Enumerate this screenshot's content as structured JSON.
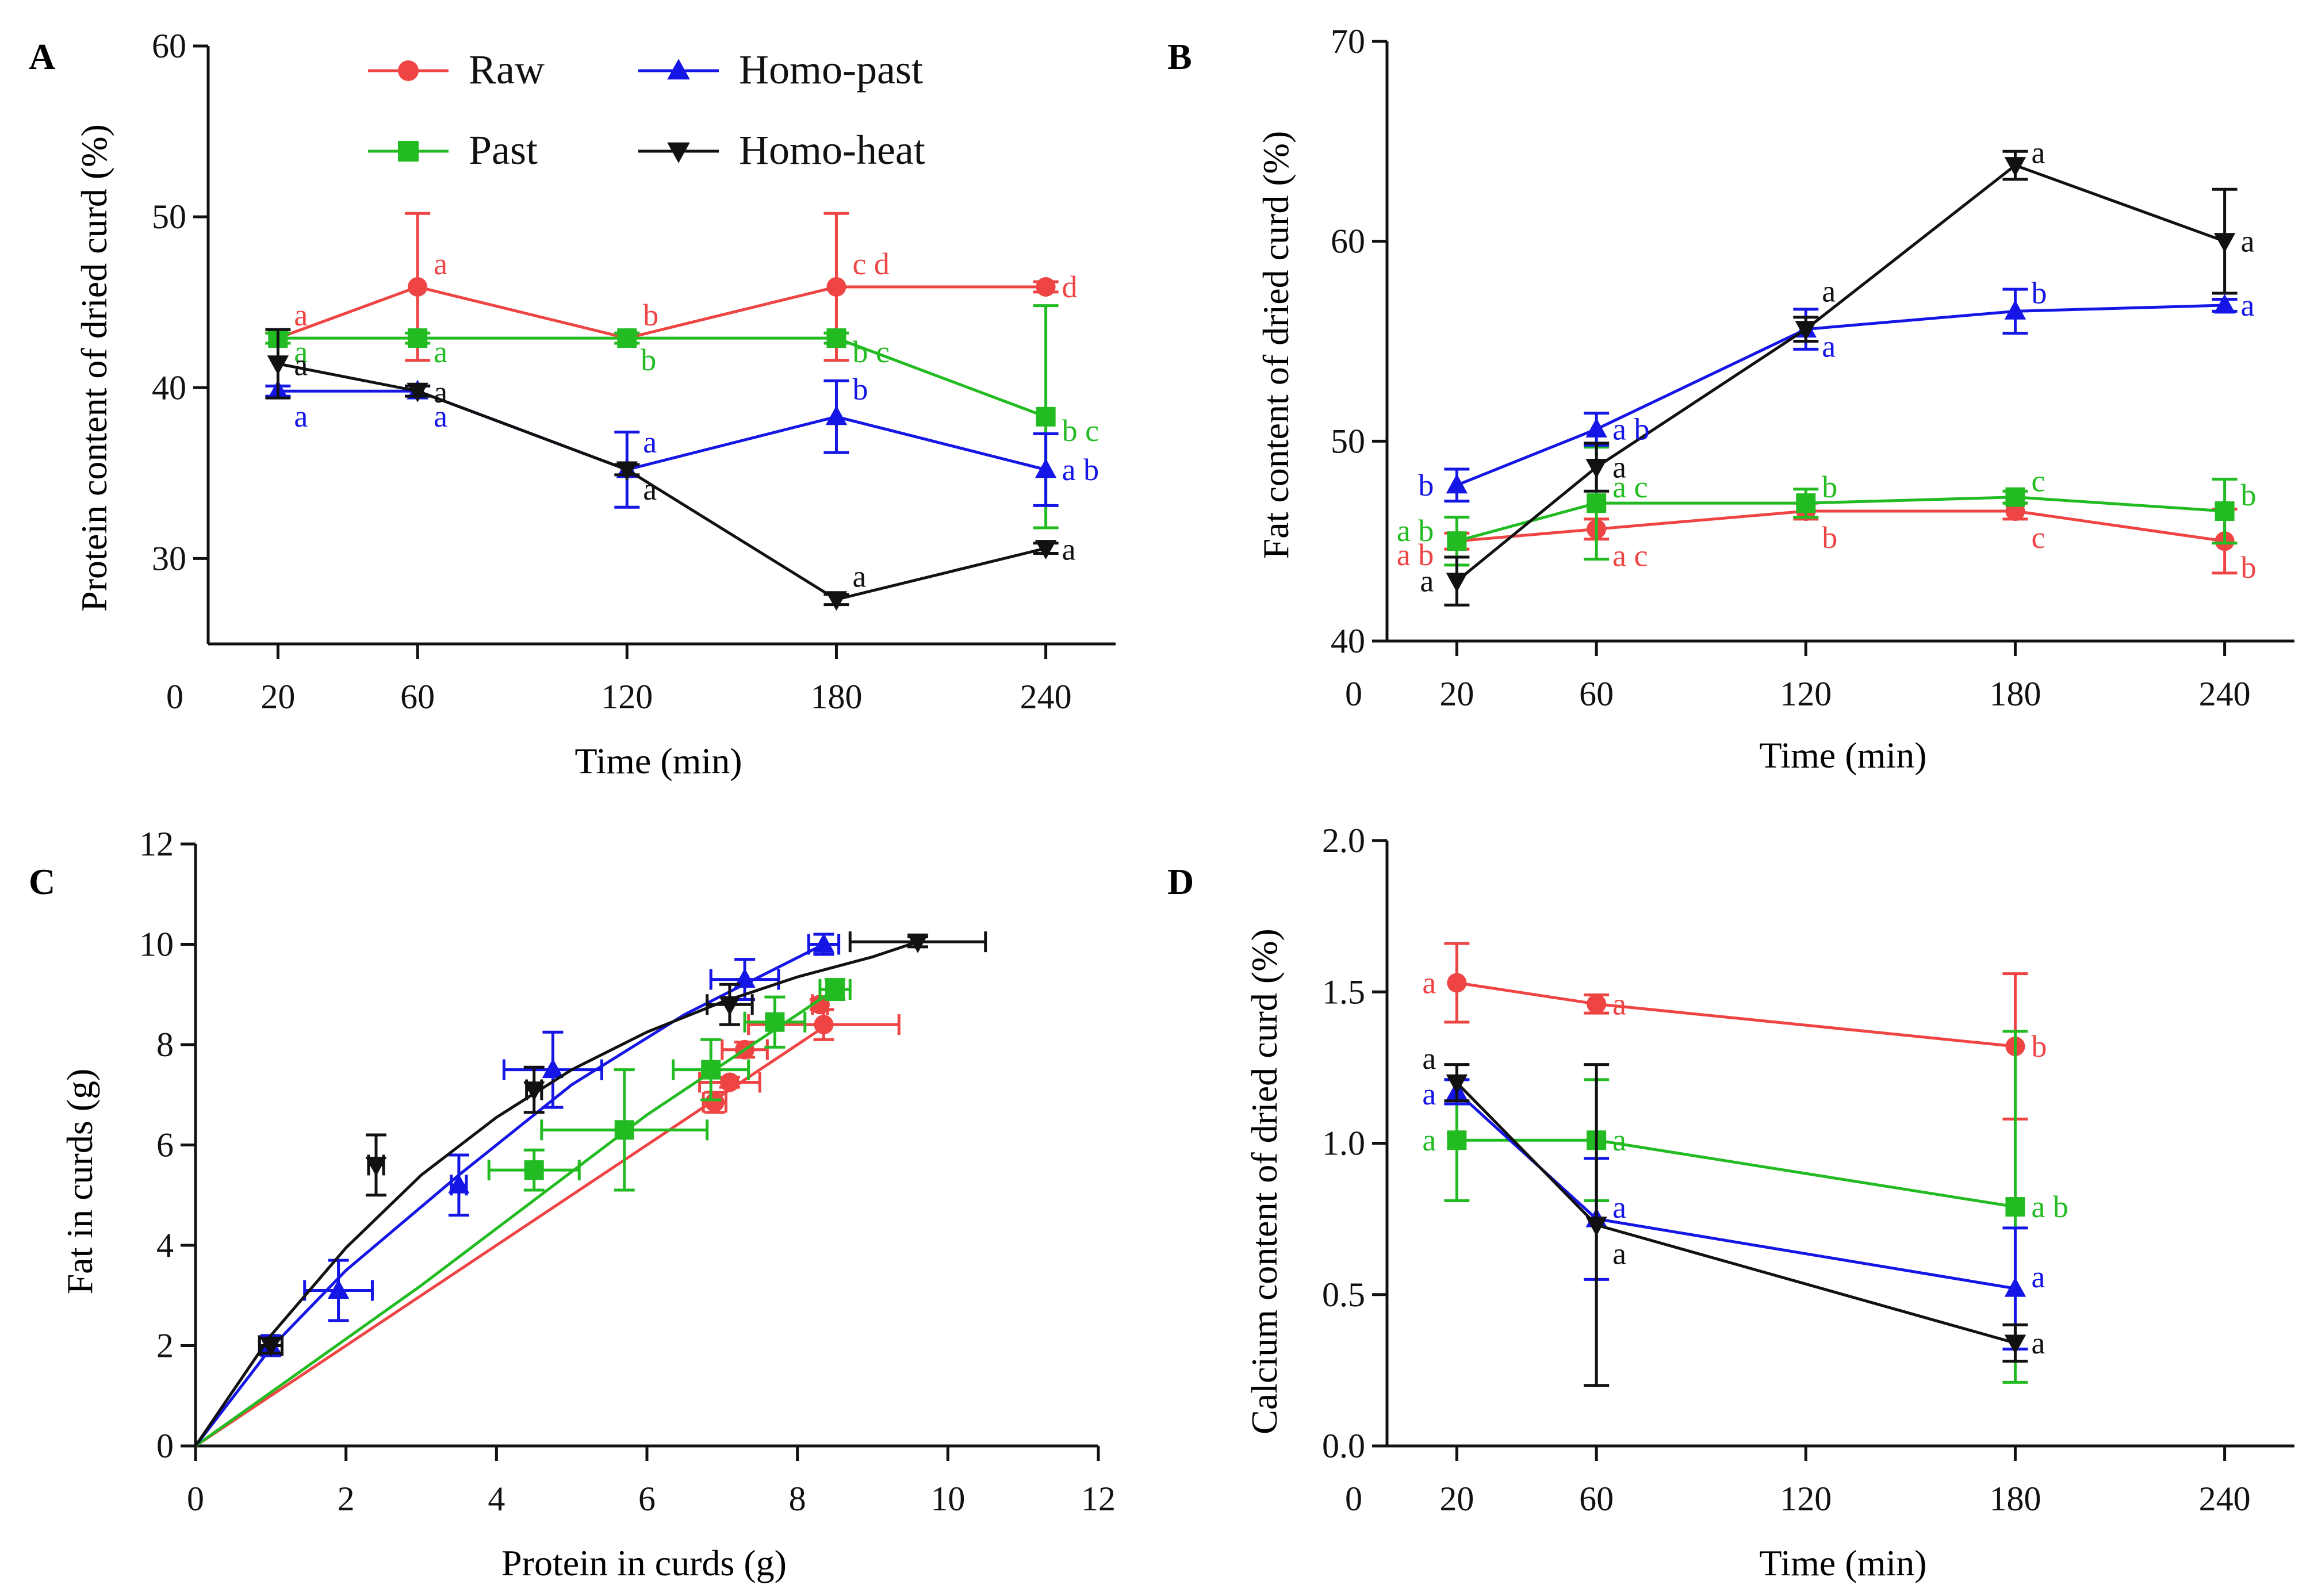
{
  "colors": {
    "raw": "#ee4444",
    "past": "#22bb22",
    "homo_past": "#1515e6",
    "homo_heat": "#111111"
  },
  "chart_data": [
    {
      "panel": "A",
      "type": "line",
      "xlabel": "Time (min)",
      "ylabel": "Protein content of dried curd (%)",
      "x_origin_label": "0",
      "xticks": [
        20,
        60,
        120,
        180,
        240
      ],
      "yticks": [
        30,
        40,
        50,
        60
      ],
      "xlim": [
        0,
        260
      ],
      "ylim": [
        25,
        60
      ],
      "legend": {
        "position": "top",
        "entries": [
          "Raw",
          "Past",
          "Homo-past",
          "Homo-heat"
        ]
      },
      "series": [
        {
          "name": "Raw",
          "key": "raw",
          "marker": "circle",
          "points": [
            {
              "x": 20,
              "y": 42.9,
              "err": 0.3,
              "label": "a"
            },
            {
              "x": 60,
              "y": 45.9,
              "err": 4.3,
              "label": "a"
            },
            {
              "x": 120,
              "y": 42.9,
              "err": 0.3,
              "label": "b"
            },
            {
              "x": 180,
              "y": 45.9,
              "err": 4.3,
              "label": "cd"
            },
            {
              "x": 240,
              "y": 45.9,
              "err": 0.3,
              "label": "d"
            }
          ]
        },
        {
          "name": "Past",
          "key": "past",
          "marker": "square",
          "points": [
            {
              "x": 20,
              "y": 42.9,
              "err": 0.3,
              "label": "a"
            },
            {
              "x": 60,
              "y": 42.9,
              "err": 0.3,
              "label": "a"
            },
            {
              "x": 120,
              "y": 42.9,
              "err": 0.3,
              "label": "b"
            },
            {
              "x": 180,
              "y": 42.9,
              "err": 0.3,
              "label": "bc"
            },
            {
              "x": 240,
              "y": 38.3,
              "err": 6.5,
              "label": "bc"
            }
          ]
        },
        {
          "name": "Homo-past",
          "key": "homo_past",
          "marker": "triangle-up",
          "points": [
            {
              "x": 20,
              "y": 39.8,
              "err": 0.3,
              "label": "a"
            },
            {
              "x": 60,
              "y": 39.8,
              "err": 0.3,
              "label": "a"
            },
            {
              "x": 120,
              "y": 35.2,
              "err": 2.2,
              "label": "a"
            },
            {
              "x": 180,
              "y": 38.3,
              "err": 2.1,
              "label": "b"
            },
            {
              "x": 240,
              "y": 35.2,
              "err": 2.1,
              "label": "ab"
            }
          ]
        },
        {
          "name": "Homo-heat",
          "key": "homo_heat",
          "marker": "triangle-down",
          "points": [
            {
              "x": 20,
              "y": 41.4,
              "err": 2.0,
              "label": "a"
            },
            {
              "x": 60,
              "y": 39.8,
              "err": 0.3,
              "label": "a"
            },
            {
              "x": 120,
              "y": 35.2,
              "err": 0.3,
              "label": "a"
            },
            {
              "x": 180,
              "y": 27.6,
              "err": 0.3,
              "label": "a"
            },
            {
              "x": 240,
              "y": 30.6,
              "err": 0.3,
              "label": "a"
            }
          ]
        }
      ]
    },
    {
      "panel": "B",
      "type": "line",
      "xlabel": "Time (min)",
      "ylabel": "Fat content of dried curd (%)",
      "x_origin_label": "0",
      "xticks": [
        20,
        60,
        120,
        180,
        240
      ],
      "yticks": [
        40,
        50,
        60,
        70
      ],
      "xlim": [
        0,
        260
      ],
      "ylim": [
        40,
        70
      ],
      "series": [
        {
          "name": "Raw",
          "key": "raw",
          "marker": "circle",
          "points": [
            {
              "x": 20,
              "y": 45.0,
              "err": 0.4,
              "label": "ab"
            },
            {
              "x": 60,
              "y": 45.6,
              "err": 0.5,
              "label": "ac"
            },
            {
              "x": 120,
              "y": 46.5,
              "err": 0.4,
              "label": "b"
            },
            {
              "x": 180,
              "y": 46.5,
              "err": 0.4,
              "label": "c"
            },
            {
              "x": 240,
              "y": 45.0,
              "err": 1.6,
              "label": "b"
            }
          ]
        },
        {
          "name": "Past",
          "key": "past",
          "marker": "square",
          "points": [
            {
              "x": 20,
              "y": 45.0,
              "err": 1.2,
              "label": "ab"
            },
            {
              "x": 60,
              "y": 46.9,
              "err": 2.8,
              "label": "ac"
            },
            {
              "x": 120,
              "y": 46.9,
              "err": 0.7,
              "label": "b"
            },
            {
              "x": 180,
              "y": 47.2,
              "err": 0.3,
              "label": "c"
            },
            {
              "x": 240,
              "y": 46.5,
              "err": 1.6,
              "label": "b"
            }
          ]
        },
        {
          "name": "Homo-past",
          "key": "homo_past",
          "marker": "triangle-up",
          "points": [
            {
              "x": 20,
              "y": 47.8,
              "err": 0.8,
              "label": "b"
            },
            {
              "x": 60,
              "y": 50.6,
              "err": 0.8,
              "label": "ab"
            },
            {
              "x": 120,
              "y": 55.6,
              "err": 1.0,
              "label": "a"
            },
            {
              "x": 180,
              "y": 56.5,
              "err": 1.1,
              "label": "b"
            },
            {
              "x": 240,
              "y": 56.8,
              "err": 0.3,
              "label": "a"
            }
          ]
        },
        {
          "name": "Homo-heat",
          "key": "homo_heat",
          "marker": "triangle-down",
          "points": [
            {
              "x": 20,
              "y": 43.0,
              "err": 1.2,
              "label": "a"
            },
            {
              "x": 60,
              "y": 48.7,
              "err": 1.2,
              "label": "a"
            },
            {
              "x": 120,
              "y": 55.6,
              "err": 0.6,
              "label": "a"
            },
            {
              "x": 180,
              "y": 63.8,
              "err": 0.7,
              "label": "a"
            },
            {
              "x": 240,
              "y": 60.0,
              "err": 2.6,
              "label": "a"
            }
          ]
        }
      ]
    },
    {
      "panel": "C",
      "type": "scatter",
      "xlabel": "Protein in curds (g)",
      "ylabel": "Fat in curds (g)",
      "xticks": [
        0,
        2,
        4,
        6,
        8,
        10,
        12
      ],
      "yticks": [
        0,
        2,
        4,
        6,
        8,
        10,
        12
      ],
      "xlim": [
        0,
        12
      ],
      "ylim": [
        0,
        12
      ],
      "series": [
        {
          "name": "Raw",
          "key": "raw",
          "marker": "circle",
          "points": [
            {
              "x": 6.9,
              "y": 6.85,
              "xerr": 0.15,
              "yerr": 0.2
            },
            {
              "x": 7.1,
              "y": 7.25,
              "xerr": 0.4,
              "yerr": 0.1
            },
            {
              "x": 7.3,
              "y": 7.9,
              "xerr": 0.3,
              "yerr": 0.15
            },
            {
              "x": 8.3,
              "y": 8.8,
              "xerr": 0.1,
              "yerr": 0.1
            },
            {
              "x": 8.35,
              "y": 8.4,
              "xerr": 1.0,
              "yerr": 0.3
            }
          ],
          "fit_curve": [
            [
              0,
              0
            ],
            [
              8.4,
              8.4
            ]
          ]
        },
        {
          "name": "Past",
          "key": "past",
          "marker": "square",
          "points": [
            {
              "x": 4.5,
              "y": 5.5,
              "xerr": 0.6,
              "yerr": 0.4
            },
            {
              "x": 5.7,
              "y": 6.3,
              "xerr": 1.1,
              "yerr": 1.2
            },
            {
              "x": 6.85,
              "y": 7.5,
              "xerr": 0.5,
              "yerr": 0.6
            },
            {
              "x": 7.7,
              "y": 8.45,
              "xerr": 0.4,
              "yerr": 0.5
            },
            {
              "x": 8.5,
              "y": 9.1,
              "xerr": 0.2,
              "yerr": 0.2
            }
          ],
          "fit_curve": [
            [
              0,
              0
            ],
            [
              3,
              3.2
            ],
            [
              6,
              6.6
            ],
            [
              8.5,
              9.1
            ]
          ]
        },
        {
          "name": "Homo-past",
          "key": "homo_past",
          "marker": "triangle-up",
          "points": [
            {
              "x": 1.0,
              "y": 2.0,
              "xerr": 0.15,
              "yerr": 0.2
            },
            {
              "x": 1.9,
              "y": 3.1,
              "xerr": 0.45,
              "yerr": 0.6
            },
            {
              "x": 3.5,
              "y": 5.2,
              "xerr": 0.1,
              "yerr": 0.6
            },
            {
              "x": 4.75,
              "y": 7.5,
              "xerr": 0.65,
              "yerr": 0.75
            },
            {
              "x": 7.3,
              "y": 9.3,
              "xerr": 0.45,
              "yerr": 0.4
            },
            {
              "x": 8.35,
              "y": 10.0,
              "xerr": 0.2,
              "yerr": 0.2
            }
          ],
          "fit_curve": [
            [
              0,
              0
            ],
            [
              1,
              1.95
            ],
            [
              2,
              3.5
            ],
            [
              3.5,
              5.4
            ],
            [
              5,
              7.2
            ],
            [
              6.5,
              8.6
            ],
            [
              8.35,
              10.0
            ]
          ]
        },
        {
          "name": "Homo-heat",
          "key": "homo_heat",
          "marker": "triangle-down",
          "points": [
            {
              "x": 1.0,
              "y": 2.0,
              "xerr": 0.15,
              "yerr": 0.15
            },
            {
              "x": 2.4,
              "y": 5.6,
              "xerr": 0.1,
              "yerr": 0.6
            },
            {
              "x": 4.5,
              "y": 7.1,
              "xerr": 0.1,
              "yerr": 0.45
            },
            {
              "x": 7.1,
              "y": 8.8,
              "xerr": 0.3,
              "yerr": 0.4
            },
            {
              "x": 9.6,
              "y": 10.05,
              "xerr": 0.9,
              "yerr": 0.1
            }
          ],
          "fit_curve": [
            [
              0,
              0
            ],
            [
              1,
              2.2
            ],
            [
              2,
              3.95
            ],
            [
              3,
              5.4
            ],
            [
              4,
              6.55
            ],
            [
              5,
              7.5
            ],
            [
              6,
              8.25
            ],
            [
              7,
              8.85
            ],
            [
              8,
              9.35
            ],
            [
              9,
              9.75
            ],
            [
              9.6,
              10.05
            ]
          ]
        }
      ]
    },
    {
      "panel": "D",
      "type": "line",
      "xlabel": "Time (min)",
      "ylabel": "Calcium content of dried curd (%)",
      "x_origin_label": "0",
      "xticks": [
        20,
        60,
        120,
        180,
        240
      ],
      "yticks": [
        0.0,
        0.5,
        1.0,
        1.5,
        2.0
      ],
      "ytick_labels": [
        "0.0",
        "0.5",
        "1.0",
        "1.5",
        "2.0"
      ],
      "xlim": [
        0,
        260
      ],
      "ylim": [
        0,
        2.0
      ],
      "series": [
        {
          "name": "Raw",
          "key": "raw",
          "marker": "circle",
          "points": [
            {
              "x": 20,
              "y": 1.53,
              "err": 0.13,
              "label": "a"
            },
            {
              "x": 60,
              "y": 1.46,
              "err": 0.03,
              "label": "a"
            },
            {
              "x": 180,
              "y": 1.32,
              "err": 0.24,
              "label": "b"
            }
          ]
        },
        {
          "name": "Past",
          "key": "past",
          "marker": "square",
          "points": [
            {
              "x": 20,
              "y": 1.01,
              "err": 0.2,
              "label": "a"
            },
            {
              "x": 60,
              "y": 1.01,
              "err": 0.2,
              "label": "a"
            },
            {
              "x": 180,
              "y": 0.79,
              "err": 0.58,
              "label": "ab"
            }
          ]
        },
        {
          "name": "Homo-past",
          "key": "homo_past",
          "marker": "triangle-up",
          "points": [
            {
              "x": 20,
              "y": 1.17,
              "err": 0.04,
              "label": "a"
            },
            {
              "x": 60,
              "y": 0.75,
              "err": 0.2,
              "label": "a"
            },
            {
              "x": 180,
              "y": 0.52,
              "err": 0.2,
              "label": "a"
            }
          ]
        },
        {
          "name": "Homo-heat",
          "key": "homo_heat",
          "marker": "triangle-down",
          "points": [
            {
              "x": 20,
              "y": 1.2,
              "err": 0.06,
              "label": "a"
            },
            {
              "x": 60,
              "y": 0.73,
              "err": 0.53,
              "label": "a"
            },
            {
              "x": 180,
              "y": 0.34,
              "err": 0.06,
              "label": "a"
            }
          ]
        }
      ]
    }
  ]
}
